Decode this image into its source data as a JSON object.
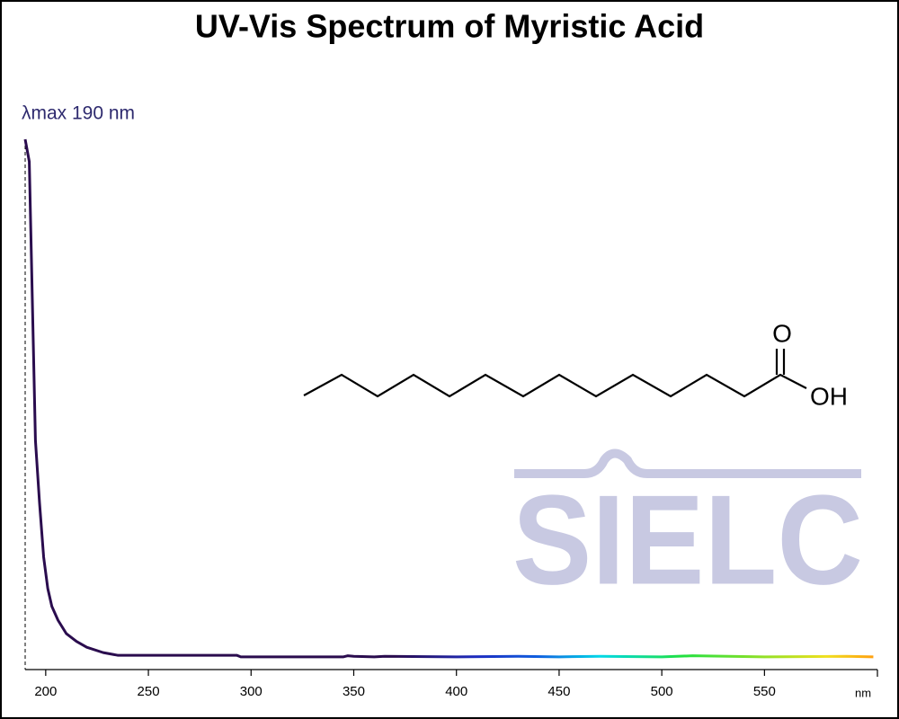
{
  "chart_data": {
    "type": "line",
    "title": "UV-Vis Spectrum of Myristic Acid",
    "xlabel": "nm",
    "annotation": {
      "text": "λmax  190 nm",
      "x": 190
    },
    "series": [
      {
        "name": "Myristic Acid",
        "x": [
          190,
          192,
          195,
          197,
          199,
          201,
          203,
          206,
          210,
          215,
          220,
          228,
          235,
          243,
          250,
          293,
          295,
          345,
          347,
          350,
          360,
          365,
          400,
          430,
          450,
          470,
          500,
          515,
          550,
          590,
          603
        ],
        "values": [
          1.0,
          0.958,
          0.432,
          0.314,
          0.212,
          0.153,
          0.119,
          0.093,
          0.068,
          0.053,
          0.042,
          0.032,
          0.027,
          0.027,
          0.027,
          0.027,
          0.024,
          0.024,
          0.026,
          0.025,
          0.024,
          0.025,
          0.024,
          0.025,
          0.024,
          0.025,
          0.024,
          0.026,
          0.024,
          0.025,
          0.024
        ],
        "gradient": [
          {
            "at": 190,
            "color": "#2a0c4e"
          },
          {
            "at": 370,
            "color": "#2a0c4e"
          },
          {
            "at": 410,
            "color": "#1d2cc0"
          },
          {
            "at": 440,
            "color": "#1060e0"
          },
          {
            "at": 470,
            "color": "#00d8e8"
          },
          {
            "at": 510,
            "color": "#20e040"
          },
          {
            "at": 560,
            "color": "#b0e020"
          },
          {
            "at": 580,
            "color": "#f0e020"
          },
          {
            "at": 603,
            "color": "#ffa010"
          }
        ]
      }
    ],
    "xlim": [
      190,
      605
    ],
    "ylim": [
      0,
      1
    ],
    "xticks": [
      200,
      250,
      300,
      350,
      400,
      450,
      500,
      550
    ],
    "structure_labels": [
      "O",
      "OH"
    ],
    "watermark": "SIELC"
  }
}
